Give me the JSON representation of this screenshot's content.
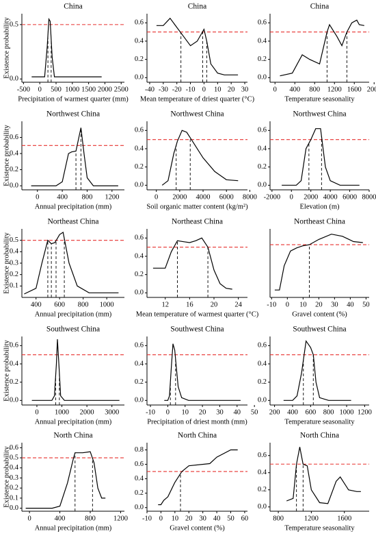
{
  "chart_data": [
    {
      "type": "line",
      "title": "China",
      "xlabel": "Precipitation of warmest quarter (mm)",
      "ylabel": "Existence probability",
      "x": [
        -250,
        150,
        230,
        280,
        320,
        380,
        450,
        1000,
        1900
      ],
      "values": [
        0.02,
        0.02,
        0.3,
        0.55,
        0.53,
        0.2,
        0.02,
        0.02,
        0.02
      ],
      "color": "#000000",
      "threshold": 0.5,
      "threshold_color": "#e8312f",
      "cutoffs": [
        250,
        350
      ],
      "xlim": [
        -550,
        2600
      ],
      "xticks": [
        -500,
        0,
        500,
        1000,
        1500,
        2000,
        2500
      ],
      "ylim": [
        -0.03,
        0.6
      ],
      "yticks": [
        {
          "value": 0,
          "label": "0.0"
        },
        0.5
      ]
    },
    {
      "type": "line",
      "title": "China",
      "xlabel": "Mean temperature of driest quarter (°C)",
      "x": [
        -35,
        -30,
        -25,
        -20,
        -15,
        -10,
        -5,
        0,
        2,
        5,
        10,
        15,
        25
      ],
      "values": [
        0.57,
        0.57,
        0.65,
        0.55,
        0.45,
        0.35,
        0.4,
        0.53,
        0.4,
        0.15,
        0.05,
        0.03,
        0.03
      ],
      "color": "#000000",
      "threshold": 0.5,
      "threshold_color": "#e8312f",
      "cutoffs": [
        -17,
        -1,
        2
      ],
      "xlim": [
        -42,
        32
      ],
      "xticks": [
        -40,
        -30,
        -20,
        -10,
        0,
        10,
        20,
        30
      ],
      "ylim": [
        -0.05,
        0.7
      ],
      "yticks": [
        {
          "value": 0,
          "label": "0.0"
        },
        0.2,
        0.4,
        0.6
      ]
    },
    {
      "type": "line",
      "title": "China",
      "xlabel": "Temperature seasonality",
      "x": [
        100,
        350,
        550,
        700,
        900,
        1050,
        1100,
        1250,
        1350,
        1450,
        1550,
        1650,
        1700,
        1800
      ],
      "values": [
        0.02,
        0.05,
        0.25,
        0.2,
        0.15,
        0.5,
        0.58,
        0.45,
        0.35,
        0.5,
        0.6,
        0.63,
        0.58,
        0.57
      ],
      "color": "#000000",
      "threshold": 0.5,
      "threshold_color": "#e8312f",
      "cutoffs": [
        1050,
        1450
      ],
      "xlim": [
        -100,
        1900
      ],
      "xticks": [
        0,
        400,
        800,
        1200,
        1600,
        2000
      ],
      "ylim": [
        -0.05,
        0.7
      ],
      "yticks": [
        {
          "value": 0,
          "label": "0.0"
        },
        0.2,
        0.4,
        0.6
      ]
    },
    {
      "type": "line",
      "title": "Northwest China",
      "xlabel": "Annual precipitation (mm)",
      "ylabel": "Existence probability",
      "x": [
        -100,
        300,
        400,
        500,
        550,
        620,
        700,
        750,
        800,
        900,
        1300
      ],
      "values": [
        0,
        0,
        0.05,
        0.4,
        0.42,
        0.43,
        0.72,
        0.4,
        0.1,
        0,
        0
      ],
      "color": "#000000",
      "threshold": 0.5,
      "threshold_color": "#e8312f",
      "cutoffs": [
        620,
        700
      ],
      "xlim": [
        -250,
        1400
      ],
      "xticks": [
        0,
        400,
        800,
        1200
      ],
      "ylim": [
        -0.05,
        0.8
      ],
      "yticks": [
        {
          "value": 0,
          "label": "0.0"
        },
        0.2,
        0.4,
        0.6
      ]
    },
    {
      "type": "line",
      "title": "Northwest China",
      "xlabel": "Soil organic matter content (kg/m²)",
      "x": [
        500,
        1000,
        1500,
        1800,
        2200,
        2600,
        3000,
        4000,
        5000,
        6000,
        7000
      ],
      "values": [
        0,
        0.05,
        0.35,
        0.48,
        0.6,
        0.58,
        0.5,
        0.3,
        0.15,
        0.06,
        0.05
      ],
      "color": "#000000",
      "threshold": 0.5,
      "threshold_color": "#e8312f",
      "cutoffs": [
        1700,
        2900
      ],
      "xlim": [
        -800,
        7800
      ],
      "xticks": [
        0,
        2000,
        4000,
        6000,
        8000
      ],
      "ylim": [
        -0.05,
        0.7
      ],
      "yticks": [
        {
          "value": 0,
          "label": "0.0"
        },
        0.2,
        0.4,
        0.6
      ]
    },
    {
      "type": "line",
      "title": "Northwest China",
      "xlabel": "Elevation (m)",
      "x": [
        -1000,
        500,
        1000,
        1500,
        2000,
        2500,
        3000,
        3500,
        4000,
        5000,
        7000
      ],
      "values": [
        0,
        0,
        0.05,
        0.4,
        0.5,
        0.62,
        0.62,
        0.2,
        0.05,
        0,
        0
      ],
      "color": "#000000",
      "threshold": 0.5,
      "threshold_color": "#e8312f",
      "cutoffs": [
        1800,
        3100
      ],
      "xlim": [
        -2200,
        8000
      ],
      "xticks": [
        -2000,
        0,
        2000,
        4000,
        6000,
        8000
      ],
      "ylim": [
        -0.05,
        0.7
      ],
      "yticks": [
        {
          "value": 0,
          "label": "0.0"
        },
        0.2,
        0.4,
        0.6
      ]
    },
    {
      "type": "line",
      "title": "Northeast China",
      "xlabel": "Annual precipitation (mm)",
      "ylabel": "Existence probability",
      "x": [
        300,
        400,
        450,
        500,
        530,
        560,
        600,
        630,
        680,
        750,
        850,
        1100
      ],
      "values": [
        0.03,
        0.08,
        0.3,
        0.5,
        0.47,
        0.48,
        0.55,
        0.57,
        0.3,
        0.1,
        0.04,
        0.04
      ],
      "color": "#000000",
      "threshold": 0.5,
      "threshold_color": "#e8312f",
      "cutoffs": [
        500,
        530,
        570,
        640
      ],
      "xlim": [
        280,
        1150
      ],
      "xticks": [
        400,
        600,
        800,
        1000
      ],
      "ylim": [
        0,
        0.6
      ],
      "yticks": [
        0.1,
        0.2,
        0.3,
        0.4,
        0.5
      ]
    },
    {
      "type": "line",
      "title": "Northeast China",
      "xlabel": "Mean temperature of warmest quarter (°C)",
      "x": [
        10,
        12,
        13,
        14,
        15,
        16,
        17,
        18,
        19,
        20,
        21,
        22,
        23
      ],
      "values": [
        0.27,
        0.27,
        0.45,
        0.57,
        0.56,
        0.55,
        0.57,
        0.6,
        0.5,
        0.25,
        0.1,
        0.05,
        0.04
      ],
      "color": "#000000",
      "threshold": 0.5,
      "threshold_color": "#e8312f",
      "cutoffs": [
        14,
        19
      ],
      "xlim": [
        9,
        25.5
      ],
      "xticks": [
        12,
        16,
        20,
        24
      ],
      "ylim": [
        -0.05,
        0.7
      ],
      "yticks": [
        {
          "value": 0,
          "label": "0.0"
        },
        0.2,
        0.4,
        0.6
      ]
    },
    {
      "type": "line",
      "title": "Northeast China",
      "xlabel": "Gravel content (%)",
      "x": [
        -8,
        -5,
        -2,
        2,
        6,
        10,
        14,
        20,
        28,
        35,
        42,
        48
      ],
      "values": [
        0.07,
        0.07,
        0.3,
        0.44,
        0.47,
        0.49,
        0.5,
        0.55,
        0.6,
        0.58,
        0.53,
        0.52
      ],
      "color": "#000000",
      "threshold": 0.5,
      "threshold_color": "#e8312f",
      "cutoffs": [
        14
      ],
      "xlim": [
        -11,
        52
      ],
      "xticks": [
        -10,
        0,
        10,
        20,
        30,
        40,
        50
      ],
      "ylim": [
        0,
        0.65
      ]
    },
    {
      "type": "line",
      "title": "Southwest China",
      "xlabel": "Annual precipitation (mm)",
      "ylabel": "Existence probability",
      "x": [
        -200,
        600,
        700,
        780,
        820,
        880,
        950,
        1100,
        3300
      ],
      "values": [
        0,
        0,
        0.05,
        0.4,
        0.67,
        0.4,
        0.05,
        0,
        0
      ],
      "color": "#000000",
      "threshold": 0.5,
      "threshold_color": "#e8312f",
      "cutoffs": [
        750,
        900
      ],
      "xlim": [
        -600,
        3500
      ],
      "xticks": [
        0,
        1000,
        2000,
        3000
      ],
      "ylim": [
        -0.05,
        0.7
      ],
      "yticks": [
        {
          "value": 0,
          "label": "0.0"
        },
        0.2,
        0.4,
        0.6
      ]
    },
    {
      "type": "line",
      "title": "Southwest China",
      "xlabel": "Precipitation of driest month (mm)",
      "x": [
        -2,
        0,
        1,
        2,
        3,
        4,
        6,
        8,
        12,
        42
      ],
      "values": [
        0,
        0,
        0.05,
        0.35,
        0.62,
        0.55,
        0.15,
        0.03,
        0,
        0
      ],
      "color": "#000000",
      "threshold": 0.5,
      "threshold_color": "#e8312f",
      "cutoffs": [
        1.5,
        4.5
      ],
      "xlim": [
        -12,
        46
      ],
      "xticks": [
        -10,
        0,
        10,
        20,
        30,
        40,
        50
      ],
      "ylim": [
        -0.05,
        0.7
      ],
      "yticks": [
        {
          "value": 0,
          "label": "0.0"
        },
        0.2,
        0.4,
        0.6
      ]
    },
    {
      "type": "line",
      "title": "Southwest China",
      "xlabel": "Temperature seasonality",
      "x": [
        300,
        400,
        450,
        500,
        550,
        600,
        630,
        660,
        700,
        800,
        1050
      ],
      "values": [
        0,
        0,
        0.05,
        0.3,
        0.65,
        0.58,
        0.5,
        0.2,
        0.03,
        0,
        0
      ],
      "color": "#000000",
      "threshold": 0.5,
      "threshold_color": "#e8312f",
      "cutoffs": [
        520,
        630
      ],
      "xlim": [
        150,
        1250
      ],
      "xticks": [
        200,
        400,
        600,
        800,
        1000,
        1200
      ],
      "ylim": [
        -0.05,
        0.7
      ],
      "yticks": [
        {
          "value": 0,
          "label": "0.0"
        },
        0.2,
        0.4,
        0.6
      ]
    },
    {
      "type": "line",
      "title": "North China",
      "xlabel": "Annual precipitation (mm)",
      "ylabel": "Existence probability",
      "x": [
        -50,
        300,
        400,
        500,
        580,
        600,
        700,
        800,
        850,
        900,
        950,
        1000
      ],
      "values": [
        0,
        0,
        0.02,
        0.25,
        0.5,
        0.55,
        0.55,
        0.56,
        0.45,
        0.2,
        0.1,
        0.1
      ],
      "color": "#000000",
      "threshold": 0.5,
      "threshold_color": "#e8312f",
      "cutoffs": [
        600,
        830
      ],
      "xlim": [
        -100,
        1250
      ],
      "xticks": [
        0,
        400,
        800,
        1200
      ],
      "ylim": [
        -0.03,
        0.65
      ],
      "yticks": [
        {
          "value": 0,
          "label": "0.0"
        },
        0.1,
        0.2,
        0.3,
        0.4,
        0.5,
        0.6
      ]
    },
    {
      "type": "line",
      "title": "North China",
      "xlabel": "Gravel content (%)",
      "x": [
        -2,
        0,
        2,
        5,
        10,
        15,
        20,
        35,
        40,
        50,
        55
      ],
      "values": [
        0.04,
        0.04,
        0.1,
        0.15,
        0.35,
        0.5,
        0.58,
        0.61,
        0.7,
        0.8,
        0.8
      ],
      "color": "#000000",
      "threshold": 0.5,
      "threshold_color": "#e8312f",
      "cutoffs": [
        14
      ],
      "xlim": [
        -10,
        62
      ],
      "xticks": [
        -10,
        0,
        10,
        20,
        30,
        40,
        50,
        60
      ],
      "ylim": [
        -0.05,
        0.9
      ],
      "yticks": [
        {
          "value": 0,
          "label": "0.0"
        },
        0.2,
        0.4,
        0.6,
        0.8
      ]
    },
    {
      "type": "line",
      "title": "North China",
      "xlabel": "Temperature seasonality",
      "x": [
        900,
        980,
        1020,
        1060,
        1100,
        1150,
        1200,
        1300,
        1400,
        1500,
        1550,
        1650,
        1750,
        1800
      ],
      "values": [
        0.07,
        0.1,
        0.5,
        0.7,
        0.5,
        0.48,
        0.2,
        0.05,
        0.04,
        0.3,
        0.35,
        0.2,
        0.18,
        0.18
      ],
      "color": "#000000",
      "threshold": 0.5,
      "threshold_color": "#e8312f",
      "cutoffs": [
        1020,
        1100
      ],
      "xlim": [
        700,
        1900
      ],
      "xticks": [
        800,
        1200,
        1600
      ],
      "ylim": [
        -0.05,
        0.75
      ],
      "yticks": [
        {
          "value": 0,
          "label": "0.0"
        },
        0.2,
        0.4,
        0.6
      ]
    }
  ]
}
